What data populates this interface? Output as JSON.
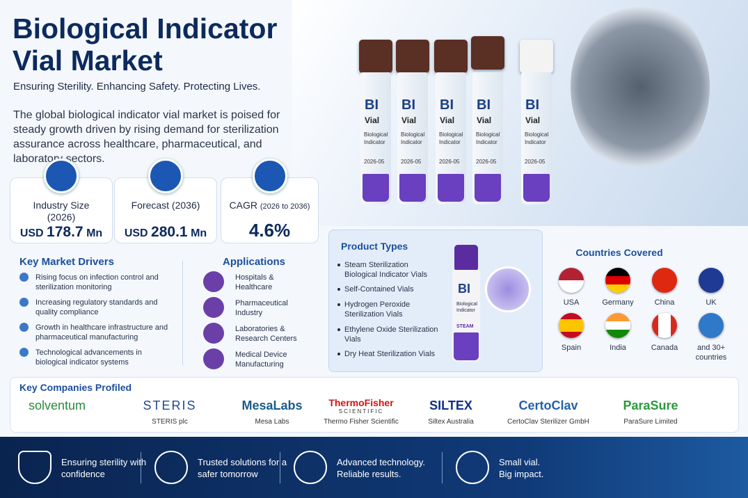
{
  "header": {
    "title": "Biological Indicator Vial Market",
    "tagline": "Ensuring Sterility. Enhancing Safety. Protecting Lives.",
    "intro": "The global biological indicator vial market is poised for steady growth driven by rising demand for sterilization assurance across healthcare, pharmaceutical, and laboratory sectors."
  },
  "stats": [
    {
      "label": "Industry Size (2026)",
      "prefix": "USD",
      "value": "178.7",
      "unit": "Mn"
    },
    {
      "label": "Forecast (2036)",
      "prefix": "USD",
      "value": "280.1",
      "unit": "Mn"
    },
    {
      "label": "CAGR",
      "note": "(2026 to 2036)",
      "value": "4.6%"
    }
  ],
  "vial_label": {
    "code": "BI",
    "name": "Vial",
    "desc": "Biological Indicator",
    "lot": "2026-05"
  },
  "drivers": {
    "title": "Key Market Drivers",
    "items": [
      "Rising focus on infection control and sterilization monitoring",
      "Increasing regulatory standards and quality compliance",
      "Growth in healthcare infrastructure and pharmaceutical manufacturing",
      "Technological advancements in biological indicator systems"
    ]
  },
  "applications": {
    "title": "Applications",
    "items": [
      "Hospitals & Healthcare",
      "Pharmaceutical Industry",
      "Laboratories & Research Centers",
      "Medical Device Manufacturing"
    ]
  },
  "product_types": {
    "title": "Product Types",
    "items": [
      "Steam Sterilization Biological Indicator Vials",
      "Self-Contained Vials",
      "Hydrogen Peroxide Sterilization Vials",
      "Ethylene Oxide Sterilization Vials",
      "Dry Heat Sterilization Vials"
    ],
    "vial": {
      "code": "BI",
      "desc": "Biological Indicator",
      "tag": "STEAM"
    }
  },
  "countries": {
    "title": "Countries Covered",
    "items": [
      "USA",
      "Germany",
      "China",
      "UK",
      "Spain",
      "India",
      "Canada",
      "and 30+ countries"
    ]
  },
  "companies": {
    "title": "Key Companies Profiled",
    "items": [
      {
        "logo": "solventum"
      },
      {
        "logo": "STERIS",
        "name": "STERIS plc"
      },
      {
        "logo": "MesaLabs",
        "name": "Mesa Labs"
      },
      {
        "logo": "ThermoFisher",
        "logo_sub": "SCIENTIFIC",
        "name": "Thermo Fisher Scientific"
      },
      {
        "logo": "SILTEX",
        "name": "Siltex Australia"
      },
      {
        "logo": "CertoClav",
        "name": "CertoClav Sterilizer GmbH"
      },
      {
        "logo": "ParaSure",
        "name": "ParaSure Limited"
      }
    ]
  },
  "footer": {
    "items": [
      "Ensuring sterility with confidence",
      "Trusted solutions for a safer tomorrow",
      "Advanced technology. Reliable results.",
      "Small vial. Big impact."
    ]
  }
}
